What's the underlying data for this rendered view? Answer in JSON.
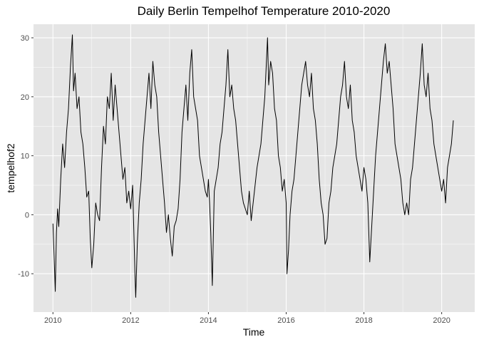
{
  "chart_data": {
    "type": "line",
    "title": "Daily Berlin Tempelhof Temperature 2010-2020",
    "xlabel": "Time",
    "ylabel": "tempelhof2",
    "xlim": [
      2009.5,
      2020.85
    ],
    "ylim": [
      -16.5,
      32.3
    ],
    "x_ticks": [
      2010,
      2012,
      2014,
      2016,
      2018,
      2020
    ],
    "x_tick_labels": [
      "2010",
      "2012",
      "2014",
      "2016",
      "2018",
      "2020"
    ],
    "y_ticks": [
      -10,
      0,
      10,
      20,
      30
    ],
    "y_tick_labels": [
      "-10",
      "0",
      "10",
      "20",
      "30"
    ],
    "grid": true,
    "background": "#e5e5e5",
    "grid_color": "#ffffff",
    "line_color": "#000000",
    "series": [
      {
        "x": [
          2010.0,
          2010.03,
          2010.06,
          2010.09,
          2010.12,
          2010.15,
          2010.2,
          2010.25,
          2010.3,
          2010.35,
          2010.4,
          2010.45,
          2010.5,
          2010.53,
          2010.57,
          2010.62,
          2010.67,
          2010.72,
          2010.77,
          2010.82,
          2010.87,
          2010.92,
          2010.96,
          2011.0,
          2011.05,
          2011.1,
          2011.15,
          2011.2,
          2011.25,
          2011.3,
          2011.35,
          2011.4,
          2011.45,
          2011.5,
          2011.55,
          2011.6,
          2011.65,
          2011.7,
          2011.75,
          2011.8,
          2011.85,
          2011.9,
          2011.95,
          2012.0,
          2012.05,
          2012.09,
          2012.11,
          2012.13,
          2012.17,
          2012.22,
          2012.27,
          2012.32,
          2012.37,
          2012.42,
          2012.47,
          2012.52,
          2012.57,
          2012.62,
          2012.67,
          2012.72,
          2012.77,
          2012.82,
          2012.87,
          2012.92,
          2012.97,
          2013.02,
          2013.07,
          2013.12,
          2013.17,
          2013.22,
          2013.27,
          2013.32,
          2013.37,
          2013.42,
          2013.47,
          2013.52,
          2013.57,
          2013.62,
          2013.67,
          2013.72,
          2013.77,
          2013.82,
          2013.87,
          2013.92,
          2013.97,
          2014.0,
          2014.03,
          2014.06,
          2014.1,
          2014.15,
          2014.2,
          2014.25,
          2014.3,
          2014.35,
          2014.4,
          2014.45,
          2014.5,
          2014.55,
          2014.6,
          2014.65,
          2014.7,
          2014.75,
          2014.8,
          2014.85,
          2014.9,
          2014.95,
          2015.0,
          2015.05,
          2015.1,
          2015.15,
          2015.2,
          2015.25,
          2015.3,
          2015.35,
          2015.4,
          2015.45,
          2015.52,
          2015.55,
          2015.6,
          2015.65,
          2015.7,
          2015.75,
          2015.8,
          2015.85,
          2015.9,
          2015.95,
          2016.0,
          2016.02,
          2016.06,
          2016.1,
          2016.15,
          2016.2,
          2016.25,
          2016.3,
          2016.35,
          2016.4,
          2016.45,
          2016.5,
          2016.55,
          2016.6,
          2016.65,
          2016.7,
          2016.75,
          2016.8,
          2016.85,
          2016.9,
          2016.95,
          2017.0,
          2017.05,
          2017.1,
          2017.15,
          2017.2,
          2017.25,
          2017.3,
          2017.35,
          2017.4,
          2017.45,
          2017.5,
          2017.55,
          2017.6,
          2017.65,
          2017.7,
          2017.75,
          2017.8,
          2017.85,
          2017.9,
          2017.95,
          2018.0,
          2018.05,
          2018.1,
          2018.15,
          2018.2,
          2018.25,
          2018.3,
          2018.35,
          2018.4,
          2018.45,
          2018.5,
          2018.55,
          2018.6,
          2018.65,
          2018.7,
          2018.75,
          2018.8,
          2018.85,
          2018.9,
          2018.95,
          2019.0,
          2019.05,
          2019.1,
          2019.15,
          2019.2,
          2019.25,
          2019.3,
          2019.35,
          2019.4,
          2019.45,
          2019.5,
          2019.55,
          2019.6,
          2019.65,
          2019.7,
          2019.75,
          2019.8,
          2019.85,
          2019.9,
          2019.95,
          2020.0,
          2020.05,
          2020.1,
          2020.15,
          2020.2,
          2020.25,
          2020.3
        ],
        "y": [
          -1.5,
          -7.0,
          -13.0,
          -3.0,
          1.0,
          -2.0,
          6.0,
          12.0,
          8.0,
          14.0,
          18.0,
          25.0,
          30.5,
          21.0,
          24.0,
          18.0,
          20.0,
          14.0,
          12.0,
          8.0,
          3.0,
          4.0,
          -4.0,
          -9.0,
          -5.0,
          2.0,
          0.0,
          -1.0,
          8.0,
          15.0,
          12.0,
          20.0,
          18.0,
          24.0,
          16.0,
          22.0,
          18.0,
          14.0,
          10.0,
          6.0,
          8.0,
          2.0,
          4.0,
          1.0,
          5.0,
          -5.0,
          -10.0,
          -14.0,
          -5.0,
          2.0,
          6.0,
          12.0,
          16.0,
          20.0,
          24.0,
          18.0,
          26.0,
          22.0,
          20.0,
          14.0,
          10.0,
          6.0,
          2.0,
          -3.0,
          0.0,
          -4.0,
          -7.0,
          -2.0,
          -1.0,
          1.0,
          6.0,
          14.0,
          18.0,
          22.0,
          16.0,
          24.0,
          28.0,
          20.0,
          18.0,
          16.0,
          10.0,
          8.0,
          6.0,
          4.0,
          3.0,
          6.0,
          2.0,
          -3.0,
          -12.0,
          4.0,
          6.0,
          8.0,
          12.0,
          14.0,
          18.0,
          22.0,
          28.0,
          20.0,
          22.0,
          18.0,
          16.0,
          12.0,
          8.0,
          4.0,
          2.0,
          1.0,
          0.0,
          4.0,
          -1.0,
          2.0,
          5.0,
          8.0,
          10.0,
          12.0,
          16.0,
          20.0,
          30.0,
          22.0,
          26.0,
          24.0,
          18.0,
          16.0,
          10.0,
          8.0,
          4.0,
          6.0,
          2.0,
          -10.0,
          -6.0,
          0.0,
          4.0,
          6.0,
          10.0,
          14.0,
          18.0,
          22.0,
          24.0,
          26.0,
          22.0,
          20.0,
          24.0,
          18.0,
          16.0,
          12.0,
          6.0,
          2.0,
          0.0,
          -5.0,
          -4.0,
          2.0,
          4.0,
          8.0,
          10.0,
          12.0,
          16.0,
          20.0,
          22.0,
          26.0,
          20.0,
          18.0,
          22.0,
          16.0,
          14.0,
          10.0,
          8.0,
          6.0,
          4.0,
          8.0,
          6.0,
          2.0,
          -8.0,
          -2.0,
          4.0,
          10.0,
          14.0,
          18.0,
          22.0,
          26.0,
          29.0,
          24.0,
          26.0,
          22.0,
          18.0,
          12.0,
          10.0,
          8.0,
          6.0,
          2.0,
          0.0,
          2.0,
          0.0,
          6.0,
          8.0,
          12.0,
          16.0,
          20.0,
          24.0,
          29.0,
          22.0,
          20.0,
          24.0,
          18.0,
          16.0,
          12.0,
          10.0,
          8.0,
          6.0,
          4.0,
          6.0,
          2.0,
          8.0,
          10.0,
          12.0,
          16.0
        ]
      }
    ]
  }
}
